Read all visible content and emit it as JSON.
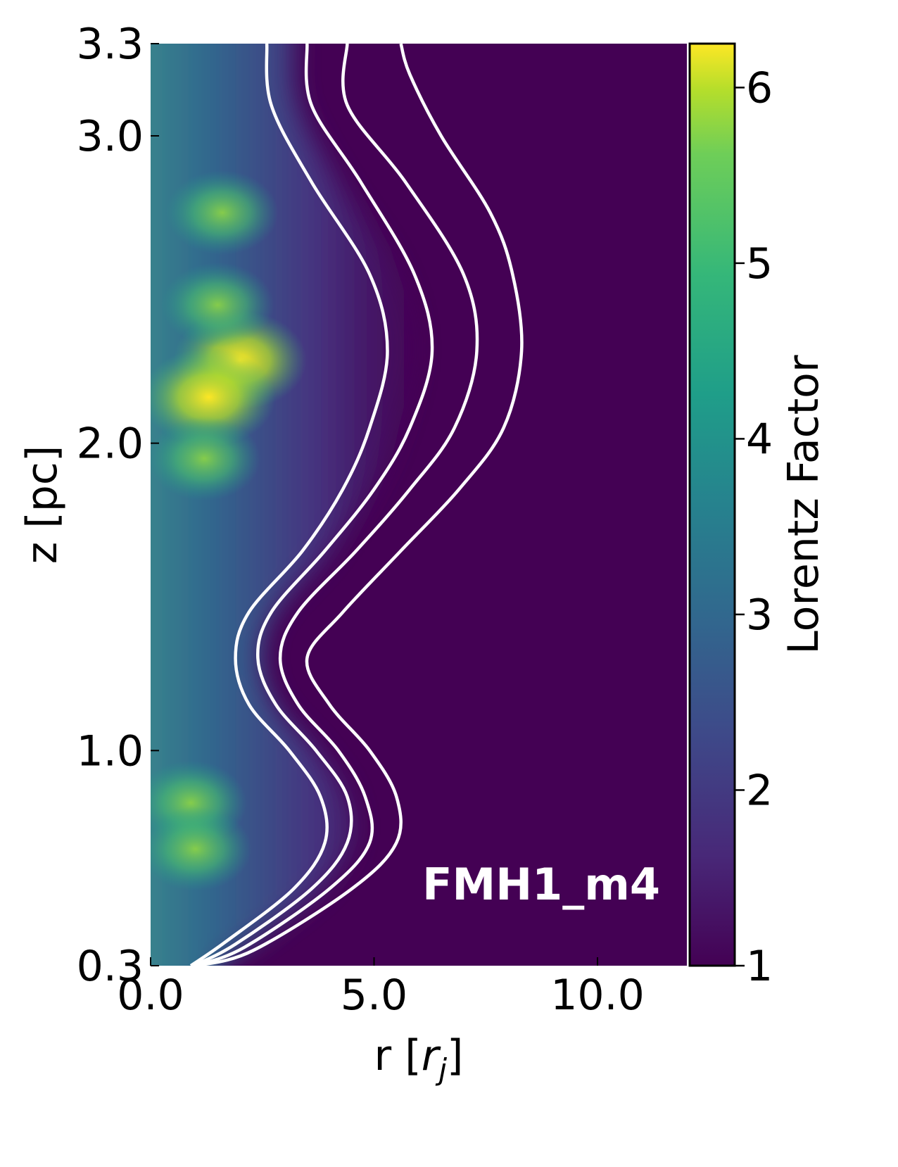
{
  "chart_data": {
    "type": "heatmap",
    "title": "",
    "annotation": "FMH1_m4",
    "xlabel": "r [r_j]",
    "xlabel_main": "r [",
    "xlabel_sym": "r",
    "xlabel_sub": "j",
    "xlabel_close": "]",
    "ylabel": "z [pc]",
    "xlim": [
      0.0,
      12.0
    ],
    "ylim": [
      0.3,
      3.3
    ],
    "x_ticks": [
      0.0,
      5.0,
      10.0
    ],
    "x_tick_labels": [
      "0.0",
      "5.0",
      "10.0"
    ],
    "y_ticks": [
      0.3,
      1.0,
      2.0,
      3.0,
      3.3
    ],
    "y_tick_labels": [
      "0.3",
      "1.0",
      "2.0",
      "3.0",
      "3.3"
    ],
    "colorbar": {
      "label": "Lorentz Factor",
      "range": [
        1,
        6.25
      ],
      "ticks": [
        1,
        2,
        3,
        4,
        5,
        6
      ],
      "tick_labels": [
        "1",
        "2",
        "3",
        "4",
        "5",
        "6"
      ],
      "colormap": "viridis"
    },
    "colors": {
      "contour": "#ffffff",
      "background": "#440154",
      "annotation": "#ffffff"
    },
    "contours": [
      {
        "name": "",
        "points": [
          [
            0.9,
            0.3
          ],
          [
            1.7,
            0.38
          ],
          [
            3.2,
            0.55
          ],
          [
            3.9,
            0.7
          ],
          [
            3.8,
            0.85
          ],
          [
            3.1,
            1.0
          ],
          [
            2.2,
            1.15
          ],
          [
            1.9,
            1.3
          ],
          [
            2.2,
            1.45
          ],
          [
            3.4,
            1.65
          ],
          [
            4.3,
            1.85
          ],
          [
            4.9,
            2.05
          ],
          [
            5.3,
            2.3
          ],
          [
            4.9,
            2.55
          ],
          [
            3.6,
            2.85
          ],
          [
            2.7,
            3.1
          ],
          [
            2.6,
            3.3
          ]
        ]
      },
      {
        "name": "",
        "points": [
          [
            0.95,
            0.3
          ],
          [
            1.9,
            0.37
          ],
          [
            3.6,
            0.55
          ],
          [
            4.4,
            0.7
          ],
          [
            4.4,
            0.85
          ],
          [
            3.7,
            1.0
          ],
          [
            2.8,
            1.15
          ],
          [
            2.4,
            1.3
          ],
          [
            2.7,
            1.45
          ],
          [
            3.9,
            1.65
          ],
          [
            5.0,
            1.85
          ],
          [
            5.8,
            2.05
          ],
          [
            6.3,
            2.3
          ],
          [
            5.9,
            2.55
          ],
          [
            4.7,
            2.85
          ],
          [
            3.6,
            3.1
          ],
          [
            3.5,
            3.3
          ]
        ]
      },
      {
        "name": "",
        "points": [
          [
            1.0,
            0.3
          ],
          [
            2.1,
            0.36
          ],
          [
            4.0,
            0.55
          ],
          [
            4.9,
            0.7
          ],
          [
            4.8,
            0.85
          ],
          [
            4.2,
            1.0
          ],
          [
            3.3,
            1.15
          ],
          [
            2.9,
            1.3
          ],
          [
            3.3,
            1.45
          ],
          [
            4.6,
            1.65
          ],
          [
            5.8,
            1.85
          ],
          [
            6.8,
            2.05
          ],
          [
            7.3,
            2.3
          ],
          [
            7.0,
            2.55
          ],
          [
            5.7,
            2.85
          ],
          [
            4.4,
            3.1
          ],
          [
            4.4,
            3.3
          ]
        ]
      },
      {
        "name": "",
        "points": [
          [
            1.05,
            0.3
          ],
          [
            2.3,
            0.35
          ],
          [
            4.5,
            0.55
          ],
          [
            5.5,
            0.7
          ],
          [
            5.5,
            0.85
          ],
          [
            4.9,
            1.0
          ],
          [
            4.0,
            1.15
          ],
          [
            3.5,
            1.3
          ],
          [
            4.3,
            1.45
          ],
          [
            5.6,
            1.65
          ],
          [
            6.9,
            1.85
          ],
          [
            7.9,
            2.05
          ],
          [
            8.3,
            2.3
          ],
          [
            8.1,
            2.55
          ],
          [
            7.6,
            2.75
          ],
          [
            6.5,
            3.0
          ],
          [
            5.8,
            3.2
          ],
          [
            5.6,
            3.3
          ]
        ]
      }
    ],
    "knots": [
      {
        "r": 2.0,
        "z": 2.27,
        "gamma": 6.2
      },
      {
        "r": 1.3,
        "z": 2.15,
        "gamma": 5.8
      },
      {
        "r": 1.5,
        "z": 2.45,
        "gamma": 5.4
      },
      {
        "r": 1.6,
        "z": 2.75,
        "gamma": 5.0
      },
      {
        "r": 1.2,
        "z": 1.95,
        "gamma": 5.0
      },
      {
        "r": 0.9,
        "z": 0.83,
        "gamma": 4.8
      },
      {
        "r": 1.0,
        "z": 0.68,
        "gamma": 4.9
      }
    ]
  }
}
